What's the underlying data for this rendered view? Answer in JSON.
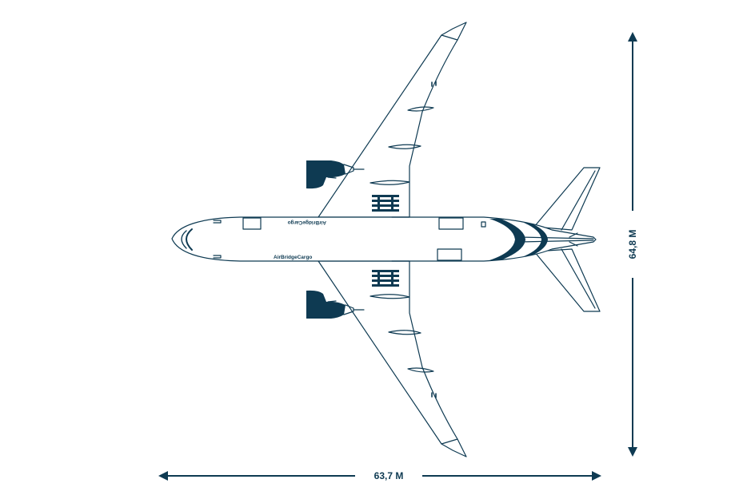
{
  "colors": {
    "ink": "#0e3a52",
    "background": "#ffffff"
  },
  "livery": {
    "upper_text": "AirBridgeCargo",
    "lower_text": "AirBridgeCargo"
  },
  "dimensions": {
    "length_label": "63,7 M",
    "wingspan_label": "64,8 M"
  },
  "icons": {
    "length_arrow": "double-arrow-horizontal",
    "wingspan_arrow": "double-arrow-vertical"
  }
}
